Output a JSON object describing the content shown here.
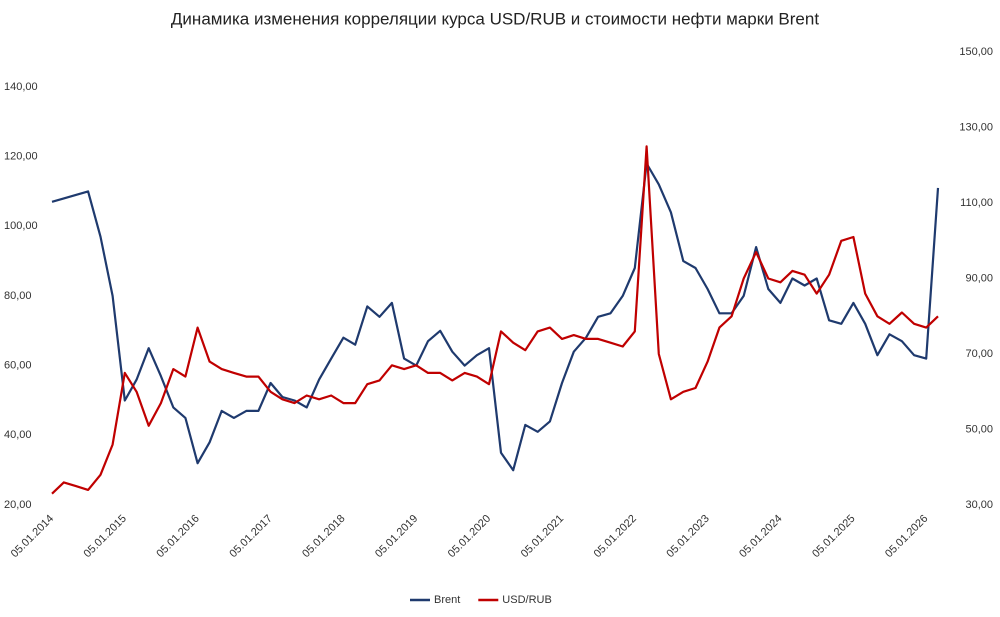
{
  "chart_data": {
    "type": "line",
    "title": "Динамика изменения корреляции курса USD/RUB и стоимости нефти марки Brent",
    "x": [
      "2014-01-05",
      "2014-03-05",
      "2014-05-05",
      "2014-07-05",
      "2014-09-05",
      "2014-11-05",
      "2015-01-05",
      "2015-03-05",
      "2015-05-05",
      "2015-07-05",
      "2015-09-05",
      "2015-11-05",
      "2016-01-05",
      "2016-03-05",
      "2016-05-05",
      "2016-07-05",
      "2016-09-05",
      "2016-11-05",
      "2017-01-05",
      "2017-03-05",
      "2017-05-05",
      "2017-07-05",
      "2017-09-05",
      "2017-11-05",
      "2018-01-05",
      "2018-03-05",
      "2018-05-05",
      "2018-07-05",
      "2018-09-05",
      "2018-11-05",
      "2019-01-05",
      "2019-03-05",
      "2019-05-05",
      "2019-07-05",
      "2019-09-05",
      "2019-11-05",
      "2020-01-05",
      "2020-03-05",
      "2020-05-05",
      "2020-07-05",
      "2020-09-05",
      "2020-11-05",
      "2021-01-05",
      "2021-03-05",
      "2021-05-05",
      "2021-07-05",
      "2021-09-05",
      "2021-11-05",
      "2022-01-05",
      "2022-03-05",
      "2022-05-05",
      "2022-07-05",
      "2022-09-05",
      "2022-11-05",
      "2023-01-05",
      "2023-03-05",
      "2023-05-05",
      "2023-07-05",
      "2023-09-05",
      "2023-11-05",
      "2024-01-05",
      "2024-03-05",
      "2024-05-05",
      "2024-07-05",
      "2024-09-05",
      "2024-11-05",
      "2025-01-05",
      "2025-03-05",
      "2025-05-05",
      "2025-07-05",
      "2025-09-05",
      "2025-11-05",
      "2026-01-05",
      "2026-03-05"
    ],
    "series": [
      {
        "name": "Brent",
        "color": "#1f3a6e",
        "values": [
          107,
          108,
          109,
          110,
          97,
          80,
          50,
          56,
          65,
          57,
          48,
          45,
          32,
          38,
          47,
          45,
          47,
          47,
          55,
          51,
          50,
          48,
          56,
          62,
          68,
          66,
          77,
          74,
          78,
          62,
          60,
          67,
          70,
          64,
          60,
          63,
          65,
          35,
          30,
          43,
          41,
          44,
          55,
          64,
          68,
          74,
          75,
          80,
          88,
          118,
          112,
          104,
          90,
          88,
          82,
          75,
          75,
          80,
          94,
          82,
          78,
          85,
          83,
          85,
          73,
          72,
          78,
          72,
          63,
          69,
          67,
          63,
          62,
          111
        ]
      },
      {
        "name": "USD/RUB",
        "color": "#c00000",
        "axis": "y2",
        "values": [
          33,
          36,
          35,
          34,
          38,
          46,
          65,
          60,
          51,
          57,
          66,
          64,
          77,
          68,
          66,
          65,
          64,
          64,
          60,
          58,
          57,
          59,
          58,
          59,
          57,
          57,
          62,
          63,
          67,
          66,
          67,
          65,
          65,
          63,
          65,
          64,
          62,
          76,
          73,
          71,
          76,
          77,
          74,
          75,
          74,
          74,
          73,
          72,
          76,
          125,
          70,
          58,
          60,
          61,
          68,
          77,
          80,
          90,
          97,
          90,
          89,
          92,
          91,
          86,
          91,
          100,
          101,
          86,
          80,
          78,
          81,
          78,
          77,
          80
        ]
      }
    ],
    "xlim": [
      "2014-01-05",
      "2026-03-25"
    ],
    "xticks": [
      {
        "value": "2014-01-05",
        "label": "05.01.2014"
      },
      {
        "value": "2015-01-05",
        "label": "05.01.2015"
      },
      {
        "value": "2016-01-05",
        "label": "05.01.2016"
      },
      {
        "value": "2017-01-05",
        "label": "05.01.2017"
      },
      {
        "value": "2018-01-05",
        "label": "05.01.2018"
      },
      {
        "value": "2019-01-05",
        "label": "05.01.2019"
      },
      {
        "value": "2020-01-05",
        "label": "05.01.2020"
      },
      {
        "value": "2021-01-05",
        "label": "05.01.2021"
      },
      {
        "value": "2022-01-05",
        "label": "05.01.2022"
      },
      {
        "value": "2023-01-05",
        "label": "05.01.2023"
      },
      {
        "value": "2024-01-05",
        "label": "05.01.2024"
      },
      {
        "value": "2025-01-05",
        "label": "05.01.2025"
      },
      {
        "value": "2026-01-05",
        "label": "05.01.2026"
      }
    ],
    "ylim": [
      20,
      150
    ],
    "yticks": [
      {
        "value": 20,
        "label": "20,00"
      },
      {
        "value": 40,
        "label": "40,00"
      },
      {
        "value": 60,
        "label": "60,00"
      },
      {
        "value": 80,
        "label": "80,00"
      },
      {
        "value": 100,
        "label": "100,00"
      },
      {
        "value": 120,
        "label": "120,00"
      },
      {
        "value": 140,
        "label": "140,00"
      }
    ],
    "y2lim": [
      30,
      150
    ],
    "y2ticks": [
      {
        "value": 30,
        "label": "30,00"
      },
      {
        "value": 50,
        "label": "50,00"
      },
      {
        "value": 70,
        "label": "70,00"
      },
      {
        "value": 90,
        "label": "90,00"
      },
      {
        "value": 110,
        "label": "110,00"
      },
      {
        "value": 130,
        "label": "130,00"
      },
      {
        "value": 150,
        "label": "150,00"
      }
    ],
    "grid": false,
    "legend": "bottom"
  }
}
